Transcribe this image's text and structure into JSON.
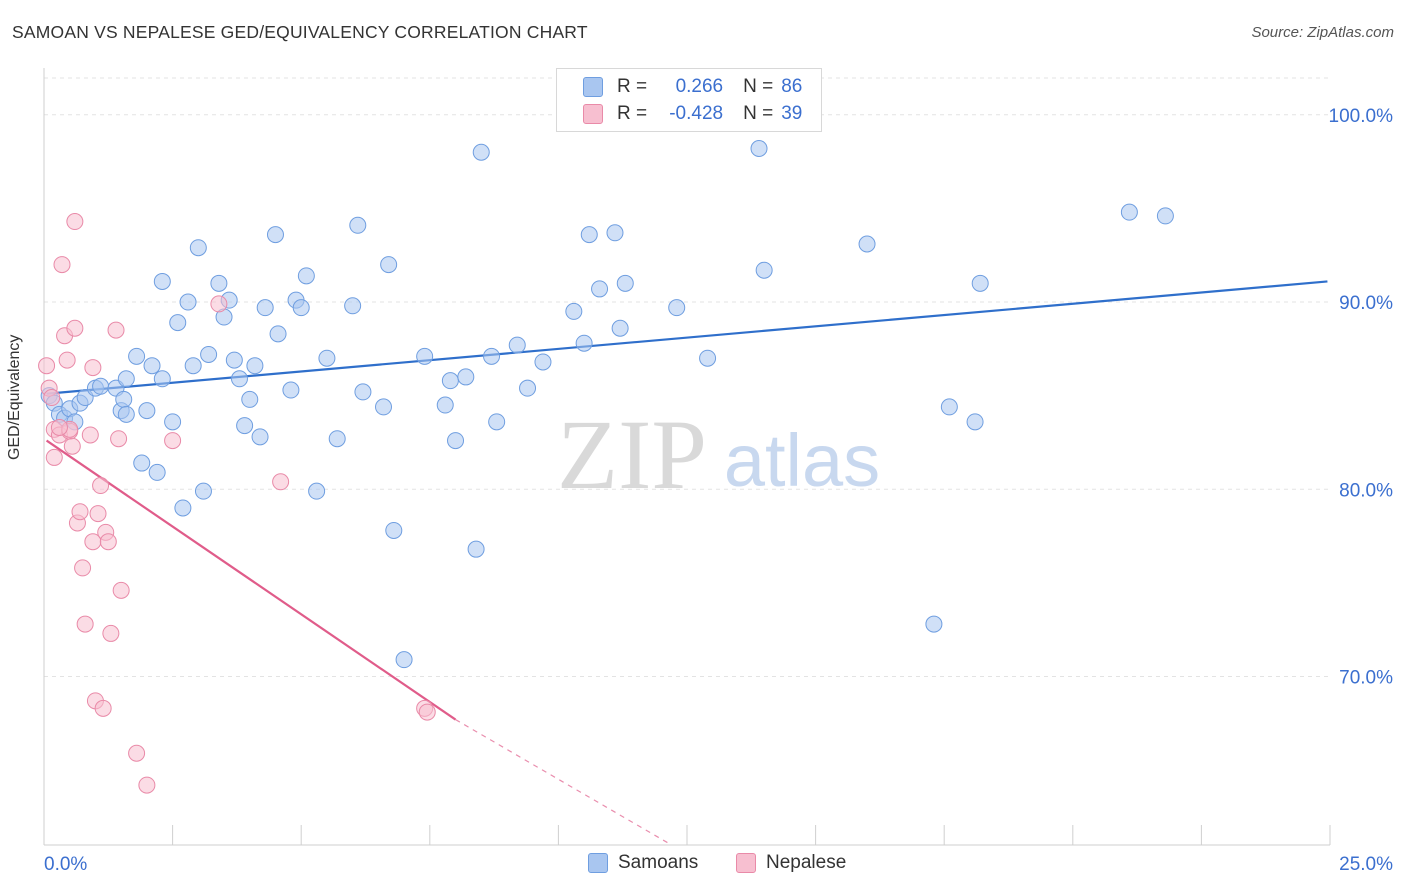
{
  "header": {
    "title": "SAMOAN VS NEPALESE GED/EQUIVALENCY CORRELATION CHART",
    "source": "Source: ZipAtlas.com"
  },
  "watermark": {
    "zip": "ZIP",
    "atlas": "atlas"
  },
  "legend": {
    "rows": [
      {
        "r_label": "R =",
        "r_value": "0.266",
        "n_label": "N =",
        "n_value": "86",
        "color": "#a9c6f0",
        "border": "#6f9ee0"
      },
      {
        "r_label": "R =",
        "r_value": "-0.428",
        "n_label": "N =",
        "n_value": "39",
        "color": "#f7bfd0",
        "border": "#e98aa8"
      }
    ],
    "bottom": [
      {
        "label": "Samoans",
        "color": "#a9c6f0",
        "border": "#6f9ee0"
      },
      {
        "label": "Nepalese",
        "color": "#f7bfd0",
        "border": "#e98aa8"
      }
    ]
  },
  "chart_data": {
    "type": "scatter",
    "title": "SAMOAN VS NEPALESE GED/EQUIVALENCY CORRELATION CHART",
    "xlabel": "",
    "ylabel": "GED/Equivalency",
    "xlim": [
      0,
      25
    ],
    "ylim": [
      61.0,
      102.5
    ],
    "x_tick_labels": [
      "0.0%",
      "25.0%"
    ],
    "y_ticks": [
      70,
      80,
      90,
      100
    ],
    "y_tick_labels": [
      "70.0%",
      "80.0%",
      "90.0%",
      "100.0%"
    ],
    "grid": true,
    "legend_position": "top-center",
    "series": [
      {
        "name": "Samoans",
        "color": "#a9c6f0",
        "stroke": "#6f9ee0",
        "trend_color": "#2f6fcb",
        "trend": {
          "x": [
            0.05,
            24.95
          ],
          "y": [
            85.1,
            91.1
          ]
        },
        "points": [
          [
            0.1,
            85.0
          ],
          [
            0.2,
            84.6
          ],
          [
            0.3,
            84.0
          ],
          [
            0.4,
            83.8
          ],
          [
            0.5,
            84.3
          ],
          [
            0.6,
            83.6
          ],
          [
            0.7,
            84.6
          ],
          [
            0.8,
            84.9
          ],
          [
            1.0,
            85.4
          ],
          [
            1.1,
            85.5
          ],
          [
            1.4,
            85.4
          ],
          [
            1.5,
            84.2
          ],
          [
            1.55,
            84.8
          ],
          [
            1.6,
            85.9
          ],
          [
            1.6,
            84.0
          ],
          [
            1.8,
            87.1
          ],
          [
            1.9,
            81.4
          ],
          [
            2.0,
            84.2
          ],
          [
            2.1,
            86.6
          ],
          [
            2.2,
            80.9
          ],
          [
            2.3,
            85.9
          ],
          [
            2.3,
            91.1
          ],
          [
            2.5,
            83.6
          ],
          [
            2.6,
            88.9
          ],
          [
            2.7,
            79.0
          ],
          [
            2.8,
            90.0
          ],
          [
            2.9,
            86.6
          ],
          [
            3.0,
            92.9
          ],
          [
            3.1,
            79.9
          ],
          [
            3.2,
            87.2
          ],
          [
            3.4,
            91.0
          ],
          [
            3.5,
            89.2
          ],
          [
            3.6,
            90.1
          ],
          [
            3.7,
            86.9
          ],
          [
            3.8,
            85.9
          ],
          [
            3.9,
            83.4
          ],
          [
            4.0,
            84.8
          ],
          [
            4.1,
            86.6
          ],
          [
            4.2,
            82.8
          ],
          [
            4.3,
            89.7
          ],
          [
            4.5,
            93.6
          ],
          [
            4.55,
            88.3
          ],
          [
            4.8,
            85.3
          ],
          [
            4.9,
            90.1
          ],
          [
            5.0,
            89.7
          ],
          [
            5.1,
            91.4
          ],
          [
            5.3,
            79.9
          ],
          [
            5.5,
            87.0
          ],
          [
            5.7,
            82.7
          ],
          [
            6.0,
            89.8
          ],
          [
            6.1,
            94.1
          ],
          [
            6.2,
            85.2
          ],
          [
            6.6,
            84.4
          ],
          [
            6.7,
            92.0
          ],
          [
            6.8,
            77.8
          ],
          [
            7.0,
            70.9
          ],
          [
            7.4,
            87.1
          ],
          [
            7.8,
            84.5
          ],
          [
            7.9,
            85.8
          ],
          [
            8.0,
            82.6
          ],
          [
            8.2,
            86.0
          ],
          [
            8.4,
            76.8
          ],
          [
            8.5,
            98.0
          ],
          [
            8.7,
            87.1
          ],
          [
            8.8,
            83.6
          ],
          [
            9.2,
            87.7
          ],
          [
            9.4,
            85.4
          ],
          [
            9.7,
            86.8
          ],
          [
            10.3,
            89.5
          ],
          [
            10.5,
            87.8
          ],
          [
            10.6,
            93.6
          ],
          [
            10.8,
            90.7
          ],
          [
            11.1,
            93.7
          ],
          [
            11.2,
            88.6
          ],
          [
            11.3,
            91.0
          ],
          [
            12.3,
            89.7
          ],
          [
            12.9,
            87.0
          ],
          [
            14.0,
            91.7
          ],
          [
            16.0,
            93.1
          ],
          [
            17.3,
            72.8
          ],
          [
            17.6,
            84.4
          ],
          [
            18.1,
            83.6
          ],
          [
            18.2,
            91.0
          ],
          [
            21.1,
            94.8
          ],
          [
            21.8,
            94.6
          ],
          [
            13.9,
            98.2
          ]
        ]
      },
      {
        "name": "Nepalese",
        "color": "#f7bfd0",
        "stroke": "#e98aa8",
        "trend_color": "#e05c8a",
        "trend": {
          "x": [
            0.05,
            8.0
          ],
          "y": [
            82.6,
            67.7
          ]
        },
        "trend_dashed": {
          "x": [
            8.0,
            12.2
          ],
          "y": [
            67.7,
            61.0
          ]
        },
        "points": [
          [
            0.05,
            86.6
          ],
          [
            0.1,
            85.4
          ],
          [
            0.15,
            84.9
          ],
          [
            0.2,
            83.2
          ],
          [
            0.2,
            81.7
          ],
          [
            0.3,
            82.9
          ],
          [
            0.35,
            92.0
          ],
          [
            0.4,
            88.2
          ],
          [
            0.45,
            86.9
          ],
          [
            0.5,
            83.1
          ],
          [
            0.5,
            83.2
          ],
          [
            0.55,
            82.3
          ],
          [
            0.6,
            88.6
          ],
          [
            0.6,
            94.3
          ],
          [
            0.65,
            78.2
          ],
          [
            0.7,
            78.8
          ],
          [
            0.75,
            75.8
          ],
          [
            0.8,
            72.8
          ],
          [
            0.9,
            82.9
          ],
          [
            0.95,
            77.2
          ],
          [
            0.95,
            86.5
          ],
          [
            1.0,
            68.7
          ],
          [
            1.05,
            78.7
          ],
          [
            1.1,
            80.2
          ],
          [
            1.15,
            68.3
          ],
          [
            1.2,
            77.7
          ],
          [
            1.25,
            77.2
          ],
          [
            1.3,
            72.3
          ],
          [
            1.4,
            88.5
          ],
          [
            1.45,
            82.7
          ],
          [
            1.5,
            74.6
          ],
          [
            1.8,
            65.9
          ],
          [
            2.0,
            64.2
          ],
          [
            2.5,
            82.6
          ],
          [
            3.4,
            89.9
          ],
          [
            4.6,
            80.4
          ],
          [
            7.4,
            68.3
          ],
          [
            7.45,
            68.1
          ],
          [
            0.3,
            83.3
          ]
        ]
      }
    ]
  }
}
